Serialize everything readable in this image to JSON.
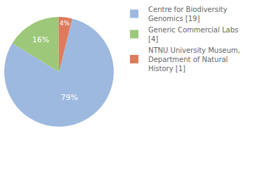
{
  "chart_data": {
    "type": "pie",
    "categories": [
      "Centre for Biodiversity Genomics [19]",
      "Generic Commercial Labs [4]",
      "NTNU University Museum, Department of Natural History [1]"
    ],
    "values": [
      79,
      16,
      4
    ],
    "value_labels": [
      "79%",
      "16%",
      "4%"
    ],
    "colors": [
      "#9db9e0",
      "#9dc87a",
      "#de7b5d"
    ],
    "data_labels": true,
    "legend": "upper right"
  }
}
